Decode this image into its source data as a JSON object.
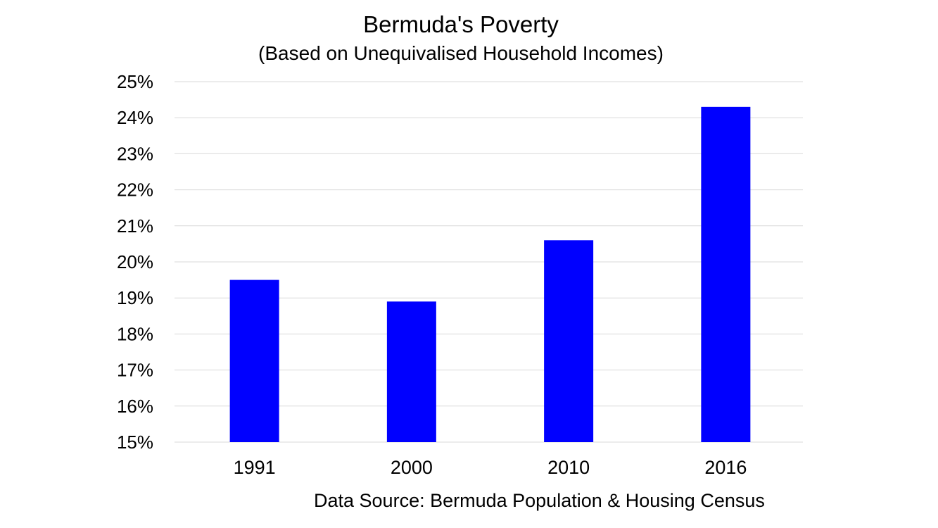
{
  "chart_data": {
    "type": "bar",
    "title": "Bermuda's Poverty",
    "subtitle": "(Based on Unequivalised Household Incomes)",
    "categories": [
      "1991",
      "2000",
      "2010",
      "2016"
    ],
    "series": [
      {
        "values": [
          19.5,
          18.9,
          20.6,
          24.3
        ],
        "color": "#0000ff"
      }
    ],
    "ylim": [
      15,
      25
    ],
    "yticks": [
      "15%",
      "16%",
      "17%",
      "18%",
      "19%",
      "20%",
      "21%",
      "22%",
      "23%",
      "24%",
      "25%"
    ],
    "ytick_values": [
      15,
      16,
      17,
      18,
      19,
      20,
      21,
      22,
      23,
      24,
      25
    ],
    "grid": true,
    "gridline_color": "#d9d9d9",
    "source_note": "Data Source: Bermuda Population & Housing Census"
  }
}
